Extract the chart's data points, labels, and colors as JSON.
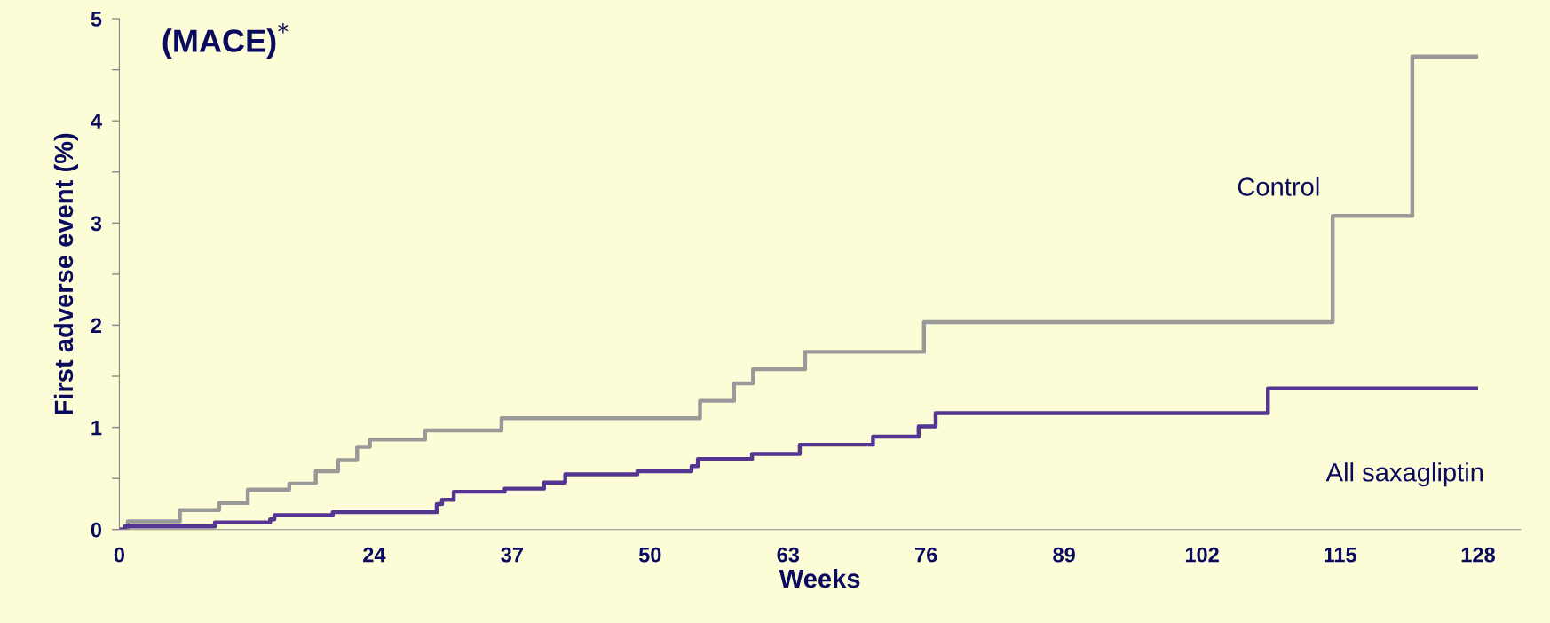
{
  "chart_data": {
    "type": "step",
    "title": "(MACE)$^{*}$",
    "xlabel": "Weeks",
    "ylabel": "First adverse event (%)",
    "xlim": [
      0,
      132
    ],
    "xticks": [
      0,
      24,
      37,
      50,
      63,
      76,
      89,
      102,
      115,
      128
    ],
    "ylim": [
      0,
      5
    ],
    "yticks": [
      0,
      {
        "value": 0.5,
        "label": null
      },
      1,
      {
        "value": 1.5,
        "label": null
      },
      2,
      {
        "value": 2.5,
        "label": null
      },
      3,
      {
        "value": 3.5,
        "label": null
      },
      4,
      {
        "value": 4.5,
        "label": null
      },
      5
    ],
    "grid": false,
    "legend": false,
    "series": [
      {
        "name": "Control",
        "color": "#999999",
        "x": [
          0,
          0.8,
          5.7,
          9.4,
          12.1,
          16.0,
          18.5,
          20.6,
          22.4,
          23.6,
          28.8,
          36.0,
          54.7,
          57.9,
          59.7,
          64.6,
          75.8,
          114.3,
          121.8,
          128
        ],
        "values": [
          0,
          0.08,
          0.19,
          0.26,
          0.39,
          0.45,
          0.57,
          0.68,
          0.81,
          0.88,
          0.97,
          1.09,
          1.26,
          1.43,
          1.57,
          1.74,
          2.03,
          3.07,
          4.63,
          4.63
        ]
      },
      {
        "name": "All saxagliptin",
        "color": "#553592",
        "x": [
          0,
          0.5,
          9.0,
          14.2,
          14.6,
          20.1,
          29.9,
          30.4,
          31.5,
          36.3,
          40.0,
          42.0,
          48.8,
          53.9,
          54.5,
          59.6,
          64.1,
          71.0,
          75.3,
          76.9,
          108.2,
          128
        ],
        "values": [
          0,
          0.03,
          0.07,
          0.1,
          0.14,
          0.17,
          0.25,
          0.29,
          0.37,
          0.4,
          0.46,
          0.54,
          0.57,
          0.62,
          0.69,
          0.74,
          0.83,
          0.91,
          1.01,
          1.14,
          1.38,
          1.38
        ]
      }
    ]
  }
}
